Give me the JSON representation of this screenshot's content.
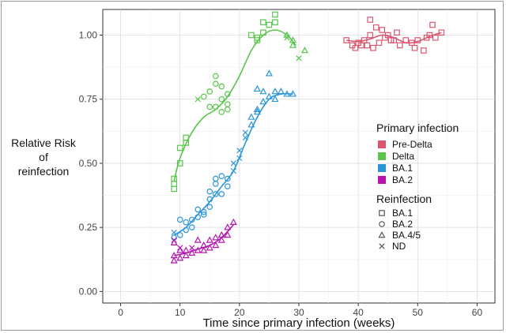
{
  "chart_data": {
    "type": "scatter",
    "xlabel": "Time since primary infection (weeks)",
    "ylabel_lines": [
      "Relative Risk",
      "of",
      "reinfection"
    ],
    "xlim": [
      -3,
      63
    ],
    "ylim": [
      -0.045,
      1.1
    ],
    "x_ticks": [
      0,
      10,
      20,
      30,
      40,
      50,
      60
    ],
    "x_tick_labels": [
      "0",
      "10",
      "20",
      "30",
      "40",
      "50",
      "60"
    ],
    "y_ticks": [
      0,
      0.25,
      0.5,
      0.75,
      1.0
    ],
    "y_tick_labels": [
      "0.00",
      "0.25",
      "0.50",
      "0.75",
      "1.00"
    ],
    "grid": true,
    "legend_placement": "right",
    "color_legend": {
      "title": "Primary infection",
      "items": [
        {
          "label": "Pre-Delta",
          "color": "#d9566e"
        },
        {
          "label": "Delta",
          "color": "#56c64a"
        },
        {
          "label": "BA.1",
          "color": "#2b95d9"
        },
        {
          "label": "BA.2",
          "color": "#b516b0"
        }
      ]
    },
    "shape_legend": {
      "title": "Reinfection",
      "items": [
        {
          "label": "BA.1",
          "shape": "square"
        },
        {
          "label": "BA.2",
          "shape": "circle"
        },
        {
          "label": "BA.4/5",
          "shape": "triangle"
        },
        {
          "label": "ND",
          "shape": "x"
        }
      ]
    },
    "series": [
      {
        "primary": "Pre-Delta",
        "color": "#d9566e",
        "trend": [
          [
            38,
            0.98
          ],
          [
            40,
            0.975
          ],
          [
            42,
            0.985
          ],
          [
            44,
            1.0
          ],
          [
            46,
            0.99
          ],
          [
            48,
            0.97
          ],
          [
            50,
            0.975
          ],
          [
            52,
            0.995
          ],
          [
            54,
            1.01
          ]
        ],
        "points": [
          [
            38,
            0.98,
            "square"
          ],
          [
            39,
            0.96,
            "square"
          ],
          [
            39.5,
            0.95,
            "square"
          ],
          [
            40,
            0.97,
            "square"
          ],
          [
            40.5,
            0.96,
            "square"
          ],
          [
            41,
            0.98,
            "square"
          ],
          [
            41.5,
            0.96,
            "square"
          ],
          [
            42,
            1.0,
            "square"
          ],
          [
            42.5,
            0.95,
            "square"
          ],
          [
            42,
            1.06,
            "square"
          ],
          [
            43,
            1.03,
            "square"
          ],
          [
            43.5,
            0.97,
            "square"
          ],
          [
            44,
            1.02,
            "square"
          ],
          [
            44.5,
            0.99,
            "square"
          ],
          [
            45,
            1.0,
            "square"
          ],
          [
            45.5,
            0.98,
            "square"
          ],
          [
            46,
            0.98,
            "square"
          ],
          [
            46.5,
            1.01,
            "square"
          ],
          [
            47,
            0.96,
            "square"
          ],
          [
            48,
            0.98,
            "square"
          ],
          [
            49,
            0.97,
            "square"
          ],
          [
            49.5,
            0.95,
            "square"
          ],
          [
            50,
            0.98,
            "square"
          ],
          [
            51,
            0.94,
            "square"
          ],
          [
            51.5,
            0.99,
            "square"
          ],
          [
            52,
            1.0,
            "square"
          ],
          [
            52.5,
            1.04,
            "square"
          ],
          [
            53,
            0.99,
            "square"
          ],
          [
            54,
            1.01,
            "square"
          ]
        ]
      },
      {
        "primary": "Delta",
        "color": "#56c64a",
        "trend": [
          [
            9,
            0.43
          ],
          [
            10,
            0.52
          ],
          [
            12,
            0.62
          ],
          [
            14,
            0.68
          ],
          [
            16,
            0.71
          ],
          [
            18,
            0.76
          ],
          [
            20,
            0.84
          ],
          [
            22,
            0.94
          ],
          [
            24,
            1.0
          ],
          [
            26,
            1.02
          ],
          [
            28,
            1.0
          ],
          [
            29.5,
            0.96
          ]
        ],
        "points": [
          [
            9,
            0.4,
            "square"
          ],
          [
            9,
            0.42,
            "square"
          ],
          [
            9,
            0.44,
            "square"
          ],
          [
            10,
            0.5,
            "square"
          ],
          [
            10,
            0.56,
            "square"
          ],
          [
            11,
            0.58,
            "square"
          ],
          [
            11,
            0.6,
            "square"
          ],
          [
            13,
            0.75,
            "x"
          ],
          [
            14,
            0.76,
            "circle"
          ],
          [
            15,
            0.78,
            "circle"
          ],
          [
            15,
            0.72,
            "circle"
          ],
          [
            16,
            0.81,
            "circle"
          ],
          [
            16,
            0.84,
            "circle"
          ],
          [
            16,
            0.72,
            "circle"
          ],
          [
            17,
            0.8,
            "circle"
          ],
          [
            17,
            0.75,
            "circle"
          ],
          [
            17,
            0.7,
            "circle"
          ],
          [
            18,
            0.73,
            "circle"
          ],
          [
            18,
            0.77,
            "circle"
          ],
          [
            18,
            0.71,
            "circle"
          ],
          [
            22,
            1.0,
            "square"
          ],
          [
            23,
            0.98,
            "square"
          ],
          [
            23,
            0.99,
            "square"
          ],
          [
            24,
            1.01,
            "square"
          ],
          [
            24,
            1.05,
            "square"
          ],
          [
            25,
            1.04,
            "square"
          ],
          [
            26,
            1.05,
            "square"
          ],
          [
            26,
            1.08,
            "square"
          ],
          [
            28,
            0.99,
            "x"
          ],
          [
            28,
            1.0,
            "triangle"
          ],
          [
            29,
            0.98,
            "triangle"
          ],
          [
            29,
            0.96,
            "triangle"
          ],
          [
            30,
            0.91,
            "x"
          ],
          [
            31,
            0.94,
            "triangle"
          ]
        ]
      },
      {
        "primary": "BA.1",
        "color": "#2b95d9",
        "trend": [
          [
            9,
            0.22
          ],
          [
            11,
            0.25
          ],
          [
            13,
            0.3
          ],
          [
            15,
            0.35
          ],
          [
            17,
            0.41
          ],
          [
            19,
            0.47
          ],
          [
            21,
            0.58
          ],
          [
            23,
            0.68
          ],
          [
            25,
            0.75
          ],
          [
            27,
            0.77
          ],
          [
            29,
            0.77
          ]
        ],
        "points": [
          [
            9,
            0.21,
            "circle"
          ],
          [
            9,
            0.23,
            "x"
          ],
          [
            10,
            0.22,
            "circle"
          ],
          [
            10,
            0.28,
            "circle"
          ],
          [
            11,
            0.24,
            "circle"
          ],
          [
            11,
            0.27,
            "circle"
          ],
          [
            12,
            0.25,
            "circle"
          ],
          [
            12,
            0.28,
            "circle"
          ],
          [
            13,
            0.29,
            "circle"
          ],
          [
            13,
            0.32,
            "circle"
          ],
          [
            14,
            0.31,
            "circle"
          ],
          [
            14,
            0.3,
            "circle"
          ],
          [
            15,
            0.36,
            "circle"
          ],
          [
            15,
            0.33,
            "circle"
          ],
          [
            15,
            0.39,
            "circle"
          ],
          [
            16,
            0.38,
            "circle"
          ],
          [
            16,
            0.42,
            "circle"
          ],
          [
            16,
            0.44,
            "circle"
          ],
          [
            17,
            0.38,
            "circle"
          ],
          [
            17,
            0.45,
            "circle"
          ],
          [
            18,
            0.41,
            "circle"
          ],
          [
            18,
            0.44,
            "circle"
          ],
          [
            19,
            0.47,
            "x"
          ],
          [
            19,
            0.5,
            "x"
          ],
          [
            20,
            0.52,
            "x"
          ],
          [
            20,
            0.55,
            "x"
          ],
          [
            21,
            0.62,
            "x"
          ],
          [
            21,
            0.6,
            "x"
          ],
          [
            22,
            0.65,
            "triangle"
          ],
          [
            22,
            0.68,
            "triangle"
          ],
          [
            23,
            0.7,
            "triangle"
          ],
          [
            23,
            0.71,
            "triangle"
          ],
          [
            23,
            0.79,
            "triangle"
          ],
          [
            24,
            0.78,
            "triangle"
          ],
          [
            24,
            0.74,
            "triangle"
          ],
          [
            25,
            0.85,
            "triangle"
          ],
          [
            25,
            0.76,
            "triangle"
          ],
          [
            26,
            0.78,
            "triangle"
          ],
          [
            26,
            0.75,
            "triangle"
          ],
          [
            27,
            0.78,
            "triangle"
          ],
          [
            28,
            0.77,
            "triangle"
          ],
          [
            29,
            0.77,
            "triangle"
          ]
        ]
      },
      {
        "primary": "BA.2",
        "color": "#b516b0",
        "trend": [
          [
            9,
            0.14
          ],
          [
            11,
            0.15
          ],
          [
            13,
            0.165
          ],
          [
            15,
            0.18
          ],
          [
            17,
            0.21
          ],
          [
            19,
            0.26
          ]
        ],
        "points": [
          [
            9,
            0.12,
            "triangle"
          ],
          [
            9,
            0.14,
            "triangle"
          ],
          [
            9,
            0.19,
            "triangle"
          ],
          [
            9,
            0.2,
            "x"
          ],
          [
            10,
            0.13,
            "triangle"
          ],
          [
            10,
            0.16,
            "triangle"
          ],
          [
            10,
            0.17,
            "x"
          ],
          [
            11,
            0.14,
            "triangle"
          ],
          [
            11,
            0.16,
            "triangle"
          ],
          [
            12,
            0.15,
            "triangle"
          ],
          [
            12,
            0.17,
            "x"
          ],
          [
            13,
            0.16,
            "triangle"
          ],
          [
            13,
            0.2,
            "triangle"
          ],
          [
            14,
            0.16,
            "triangle"
          ],
          [
            14,
            0.18,
            "triangle"
          ],
          [
            15,
            0.17,
            "triangle"
          ],
          [
            15,
            0.2,
            "triangle"
          ],
          [
            16,
            0.18,
            "triangle"
          ],
          [
            16,
            0.21,
            "triangle"
          ],
          [
            17,
            0.2,
            "triangle"
          ],
          [
            17,
            0.22,
            "triangle"
          ],
          [
            18,
            0.22,
            "triangle"
          ],
          [
            18,
            0.25,
            "triangle"
          ],
          [
            19,
            0.27,
            "triangle"
          ]
        ]
      }
    ]
  }
}
